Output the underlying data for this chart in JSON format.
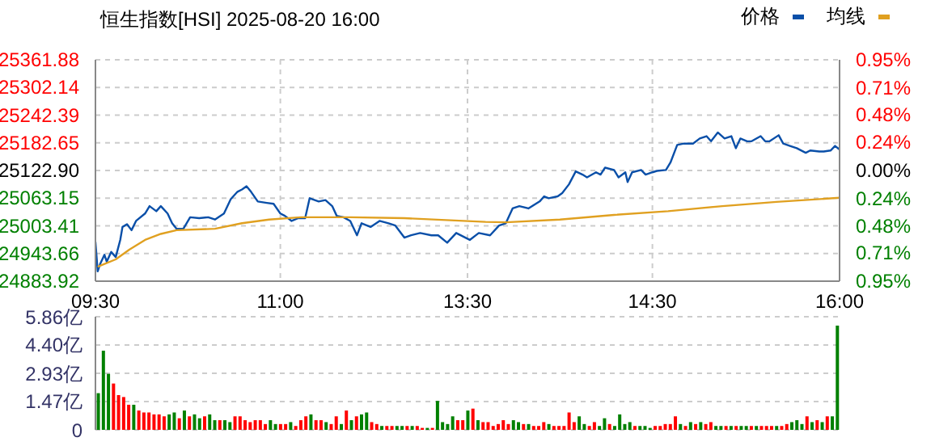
{
  "chart_data": [
    {
      "type": "line",
      "title": "恒生指数[HSI] 2025-08-20 16:00",
      "legend": "top right",
      "grid": true,
      "categories": [
        "09:30",
        null,
        null,
        null,
        null,
        null,
        null,
        null,
        null,
        null,
        null,
        null,
        null,
        null,
        null,
        null,
        null,
        null,
        null,
        null,
        null,
        null,
        null,
        null,
        null,
        null,
        null,
        null,
        null,
        null,
        null,
        null,
        null,
        null,
        null,
        null,
        null,
        null,
        null,
        null,
        null,
        null,
        null,
        null,
        null,
        null,
        null,
        null,
        null,
        null,
        null,
        null,
        null,
        null,
        null,
        null,
        null,
        null,
        null,
        null,
        null,
        null,
        null,
        null,
        null,
        null,
        null,
        null,
        null,
        null,
        null,
        null,
        null,
        null,
        null,
        null,
        null,
        null,
        null,
        null,
        null,
        null,
        "11:00",
        null,
        null,
        null,
        null,
        null,
        null,
        null,
        null,
        null,
        null,
        null,
        null,
        null,
        null,
        null,
        null,
        null,
        null,
        null,
        null,
        null,
        null,
        null,
        null,
        null,
        null,
        null,
        null,
        null,
        null,
        null,
        null,
        null,
        null,
        null,
        null,
        null,
        null,
        null,
        null,
        null,
        null,
        null,
        null,
        null,
        null,
        null,
        null,
        null,
        null,
        null,
        null,
        null,
        null,
        null,
        null,
        null,
        null,
        null,
        null,
        null,
        null,
        null,
        null,
        null,
        null,
        null,
        null,
        null,
        null,
        null,
        null,
        null,
        null,
        null,
        null,
        null,
        null,
        null,
        null,
        null,
        null,
        "13:30",
        null,
        null,
        null,
        null,
        null,
        null,
        null,
        null,
        null,
        null,
        null,
        null,
        null,
        null,
        null,
        null,
        null,
        null,
        null,
        null,
        null,
        null,
        null,
        null,
        null,
        null,
        null,
        null,
        null,
        null,
        null,
        null,
        null,
        null,
        null,
        null,
        null,
        null,
        null,
        null,
        null,
        null,
        null,
        null,
        null,
        null,
        null,
        null,
        null,
        null,
        null,
        null,
        null,
        null,
        null,
        null,
        null,
        null,
        null,
        null,
        null,
        null,
        null,
        null,
        null,
        null,
        null,
        null,
        null,
        null,
        null,
        null,
        null,
        null,
        null,
        null,
        null,
        null,
        null,
        null,
        null,
        "14:30",
        null,
        null,
        null,
        null,
        null,
        null,
        null,
        null,
        null,
        null,
        null,
        null,
        null,
        null,
        null,
        null,
        null,
        null,
        null,
        null,
        null,
        null,
        null,
        null,
        null,
        null,
        null,
        null,
        null,
        null,
        null,
        null,
        null,
        null,
        null,
        null,
        null,
        null,
        null,
        null,
        null,
        null,
        null,
        null,
        null,
        null,
        null,
        null,
        null,
        null,
        null,
        null,
        null,
        null,
        null,
        null,
        null,
        null,
        null,
        null,
        null,
        null,
        null,
        null,
        null,
        null,
        null,
        null,
        null,
        null,
        null,
        null,
        null,
        null,
        null,
        null,
        null,
        null,
        null,
        null,
        null,
        null,
        "16:00"
      ],
      "ylim": [
        24883.92,
        25361.88
      ],
      "yticks": [
        24883.92,
        24943.66,
        25003.41,
        25063.15,
        {
          "value": 25122.9,
          "label": "25122.90"
        },
        25182.65,
        25242.39,
        25302.14,
        25361.88
      ],
      "y2lim": [
        -0.95,
        0.95
      ],
      "y2ticks": [
        {
          "value": -0.95,
          "label": "0.95%"
        },
        {
          "value": -0.71,
          "label": "0.71%"
        },
        {
          "value": -0.48,
          "label": "0.48%"
        },
        {
          "value": -0.24,
          "label": "0.24%"
        },
        {
          "value": 0,
          "label": "0.00%"
        },
        {
          "value": 0.24,
          "label": "0.24%"
        },
        {
          "value": 0.48,
          "label": "0.48%"
        },
        {
          "value": 0.71,
          "label": "0.71%"
        },
        {
          "value": 0.95,
          "label": "0.95%"
        }
      ],
      "series": [
        {
          "name": "价格",
          "color": "#0a4fa8",
          "values": [
            24969,
            24905,
            24920,
            null,
            24941,
            24926,
            null,
            24947,
            null,
            24936,
            null,
            24973,
            25001,
            null,
            25007,
            null,
            24994,
            null,
            25014,
            null,
            null,
            null,
            25030,
            null,
            25046,
            null,
            null,
            25035,
            null,
            25046,
            null,
            null,
            25030,
            null,
            25009,
            null,
            24997,
            null,
            null,
            24997,
            null,
            null,
            25022,
            null,
            null,
            null,
            25020,
            null,
            null,
            null,
            25022,
            null,
            null,
            25017,
            null,
            null,
            null,
            25030,
            null,
            null,
            25061,
            null,
            null,
            25077,
            null,
            25082,
            null,
            25089,
            null,
            25077,
            null,
            null,
            25056,
            null,
            null,
            null,
            25053,
            null,
            null,
            25051,
            null,
            null,
            25030,
            null,
            25025,
            null,
            null,
            25014,
            null,
            null,
            25020,
            null,
            null,
            25020,
            null,
            25063,
            null,
            null,
            null,
            25056,
            null,
            null,
            25059,
            null,
            null,
            25046,
            null,
            25025,
            null,
            null,
            25022,
            null,
            null,
            25014,
            null,
            null,
            24983,
            null,
            25009,
            null,
            null,
            null,
            25001,
            null,
            null,
            null,
            25014,
            null,
            null,
            null,
            25009,
            null,
            null,
            25004,
            null,
            null,
            null,
            24978,
            null,
            null,
            24983,
            null,
            null,
            null,
            24988,
            null,
            null,
            null,
            null,
            24983,
            null,
            null,
            24983,
            null,
            null,
            null,
            24967,
            null,
            null,
            null,
            24988,
            null,
            null,
            null,
            null,
            null,
            24973,
            null,
            null,
            null,
            24988,
            null,
            null,
            null,
            null,
            24983,
            null,
            null,
            null,
            25004,
            null,
            null,
            25009,
            null,
            null,
            25041,
            null,
            null,
            25046,
            null,
            null,
            null,
            25041,
            null,
            null,
            null,
            null,
            25056,
            null,
            25067,
            null,
            25063,
            null,
            null,
            null,
            25067,
            null,
            25074,
            null,
            null,
            25093,
            null,
            null,
            25121,
            null,
            null,
            25114,
            null,
            25108,
            null,
            null,
            null,
            25119,
            null,
            25114,
            null,
            25129,
            null,
            null,
            null,
            25124,
            null,
            25108,
            null,
            null,
            25119,
            25098,
            null,
            25119,
            null,
            null,
            null,
            25124,
            null,
            25114,
            null,
            null,
            25119,
            null,
            25122,
            null,
            null,
            null,
            25124,
            null,
            25140,
            null,
            null,
            25178,
            null,
            null,
            25181,
            null,
            null,
            null,
            25181,
            null,
            null,
            25192,
            null,
            null,
            25197,
            null,
            25186,
            null,
            null,
            25205,
            null,
            null,
            25192,
            null,
            null,
            25197,
            null,
            25171,
            null,
            25192,
            null,
            null,
            25186,
            null,
            25186,
            null,
            null,
            null,
            25197,
            null,
            25186,
            null,
            25186,
            null,
            null,
            null,
            25199,
            null,
            25181,
            null,
            null,
            25176,
            null,
            null,
            25171,
            null,
            null,
            null,
            25161,
            null,
            25166,
            null,
            null,
            null,
            25164,
            null,
            25164,
            null,
            null,
            25166,
            null,
            25176,
            null,
            25168
          ]
        },
        {
          "name": "均线",
          "color": "#e0a020",
          "values": [
            null,
            24915,
            null,
            null,
            null,
            null,
            null,
            null,
            null,
            24931,
            null,
            null,
            null,
            null,
            null,
            24952,
            null,
            null,
            null,
            null,
            null,
            null,
            24973,
            null,
            null,
            null,
            null,
            null,
            null,
            24986,
            null,
            null,
            null,
            null,
            null,
            null,
            24994,
            null,
            null,
            null,
            null,
            null,
            null,
            null,
            null,
            null,
            null,
            null,
            null,
            null,
            null,
            null,
            null,
            24997,
            null,
            null,
            null,
            null,
            null,
            null,
            null,
            null,
            null,
            null,
            null,
            25009,
            null,
            null,
            null,
            null,
            null,
            null,
            null,
            null,
            null,
            null,
            null,
            25017,
            null,
            null,
            null,
            null,
            null,
            null,
            null,
            null,
            null,
            null,
            null,
            null,
            null,
            25022,
            null,
            null,
            null,
            null,
            null,
            null,
            null,
            null,
            null,
            null,
            null,
            null,
            null,
            null,
            null,
            null,
            null,
            null,
            null,
            null,
            null,
            25022,
            null,
            null,
            null,
            null,
            null,
            null,
            null,
            null,
            null,
            null,
            null,
            null,
            null,
            null,
            null,
            null,
            null,
            null,
            null,
            null,
            null,
            null,
            null,
            25020,
            null,
            null,
            null,
            null,
            null,
            null,
            null,
            null,
            null,
            null,
            null,
            null,
            null,
            null,
            null,
            null,
            null,
            null,
            null,
            null,
            null,
            null,
            null,
            null,
            null,
            null,
            null,
            null,
            null,
            null,
            null,
            null,
            null,
            null,
            null,
            25012,
            null,
            null,
            null,
            null,
            null,
            null,
            null,
            null,
            25011,
            null,
            null,
            null,
            null,
            null,
            null,
            null,
            null,
            null,
            null,
            null,
            null,
            null,
            null,
            null,
            null,
            null,
            null,
            null,
            null,
            null,
            null,
            null,
            25017,
            null,
            null,
            null,
            null,
            null,
            null,
            null,
            null,
            null,
            null,
            null,
            null,
            null,
            null,
            null,
            null,
            null,
            null,
            null,
            null,
            null,
            null,
            null,
            25027,
            null,
            null,
            null,
            null,
            null,
            null,
            null,
            null,
            null,
            null,
            null,
            null,
            null,
            null,
            null,
            null,
            null,
            null,
            null,
            null,
            null,
            null,
            null,
            25035,
            null,
            null,
            null,
            null,
            null,
            null,
            null,
            null,
            null,
            null,
            null,
            null,
            null,
            null,
            null,
            null,
            null,
            null,
            null,
            null,
            null,
            null,
            null,
            25046,
            null,
            null,
            null,
            null,
            null,
            null,
            null,
            null,
            null,
            null,
            null,
            null,
            null,
            null,
            null,
            null,
            null,
            null,
            null,
            null,
            null,
            null,
            null,
            25055,
            null,
            null,
            null,
            null,
            null,
            null,
            null,
            null,
            null,
            null,
            null,
            null,
            null,
            null,
            null,
            null,
            null,
            null,
            null,
            null,
            null,
            null,
            null,
            null,
            null,
            null,
            null,
            25064
          ]
        }
      ]
    },
    {
      "type": "bar",
      "grid": "y",
      "ylim": [
        0,
        5.86
      ],
      "yticks": [
        0,
        {
          "value": 1.47,
          "label": "1.47亿"
        },
        {
          "value": 2.93,
          "label": "2.93亿"
        },
        {
          "value": 4.4,
          "label": "4.40亿"
        },
        {
          "value": 5.86,
          "label": "5.86亿"
        }
      ],
      "categories": [
        null,
        null,
        null,
        null,
        null,
        null,
        null,
        null,
        null,
        null,
        null,
        null,
        null,
        null,
        null,
        null,
        null,
        null,
        null,
        null,
        null,
        null,
        null,
        null,
        null,
        null,
        null,
        null,
        null,
        null,
        null,
        null,
        null,
        null,
        null,
        null,
        null,
        null,
        null,
        null,
        null,
        null,
        null,
        null,
        null,
        null,
        null,
        null,
        null,
        null,
        null,
        null,
        null,
        null,
        null,
        null,
        null,
        null,
        null,
        null,
        null,
        null,
        null,
        null,
        null,
        null,
        null,
        null,
        null,
        null,
        null,
        null,
        null,
        null,
        null,
        null,
        null,
        null,
        null,
        null,
        null,
        null,
        null,
        null,
        null,
        null,
        null,
        null,
        null,
        null,
        null,
        null,
        null,
        null,
        null,
        null,
        null,
        null,
        null,
        null,
        null,
        null,
        null,
        null,
        null,
        null,
        null,
        null,
        null,
        null,
        null,
        null,
        null,
        null,
        null,
        null,
        null,
        null,
        null,
        null,
        null,
        null,
        null,
        null,
        null,
        null,
        null,
        null,
        null,
        null,
        null,
        null,
        null,
        null,
        null,
        null,
        null,
        null,
        null,
        null,
        null,
        null,
        null,
        null,
        null,
        null,
        null
      ],
      "values": [
        1.9,
        4.1,
        2.9,
        2.4,
        1.8,
        1.7,
        1.3,
        1.3,
        1.0,
        0.9,
        0.9,
        0.8,
        0.8,
        0.7,
        0.8,
        0.9,
        0.6,
        1.0,
        0.7,
        0.8,
        0.6,
        0.7,
        0.8,
        0.5,
        0.5,
        0.5,
        0.4,
        0.7,
        0.7,
        0.5,
        0.4,
        0.5,
        0.5,
        0.3,
        0.5,
        0.3,
        0.3,
        0.3,
        0.4,
        0.2,
        0.5,
        0.7,
        0.8,
        0.5,
        0.5,
        0.4,
        0.3,
        0.7,
        0.3,
        1.0,
        0.5,
        0.7,
        0.8,
        0.9,
        0.4,
        0.3,
        0.2,
        0.2,
        0.2,
        0.2,
        0.2,
        0.2,
        0.2,
        0.2,
        0.1,
        0.1,
        0.1,
        1.5,
        0.4,
        0.3,
        0.7,
        0.5,
        0.5,
        1.0,
        1.1,
        0.5,
        0.4,
        0.4,
        0.2,
        0.3,
        0.5,
        0.3,
        0.5,
        0.4,
        0.3,
        0.3,
        0.2,
        0.2,
        0.4,
        0.3,
        0.2,
        0.2,
        0.2,
        0.9,
        0.4,
        0.7,
        0.3,
        0.2,
        0.4,
        0.2,
        0.6,
        0.3,
        0.2,
        0.8,
        0.3,
        0.4,
        0.2,
        0.2,
        0.2,
        0.1,
        0.2,
        0.2,
        0.3,
        0.3,
        0.7,
        0.3,
        0.2,
        0.4,
        0.3,
        0.4,
        0.3,
        0.4,
        0.2,
        0.2,
        0.2,
        0.2,
        0.2,
        0.2,
        0.2,
        0.2,
        0.2,
        0.2,
        0.2,
        0.2,
        0.2,
        0.2,
        0.3,
        0.4,
        0.5,
        0.3,
        0.7,
        0.4,
        0.5,
        0.4,
        0.7,
        0.7,
        5.4
      ],
      "colors": [
        "#008000",
        "#008000",
        "#008000",
        "#ff0000",
        "#ff0000",
        "#ff0000",
        "#ff0000",
        "#008000",
        "#ff0000",
        "#ff0000",
        "#ff0000",
        "#ff0000",
        "#ff0000",
        "#ff0000",
        "#008000",
        "#008000",
        "#ff0000",
        "#008000",
        "#ff0000",
        "#008000",
        "#008000",
        "#ff0000",
        "#008000",
        "#008000",
        "#ff0000",
        "#008000",
        "#008000",
        "#ff0000",
        "#ff0000",
        "#ff0000",
        "#ff0000",
        "#ff0000",
        "#ff0000",
        "#ff0000",
        "#008000",
        "#008000",
        "#ff0000",
        "#ff0000",
        "#008000",
        "#ff0000",
        "#ff0000",
        "#ff0000",
        "#008000",
        "#ff0000",
        "#ff0000",
        "#008000",
        "#ff0000",
        "#ff0000",
        "#008000",
        "#ff0000",
        "#008000",
        "#ff0000",
        "#008000",
        "#008000",
        "#ff0000",
        "#ff0000",
        "#008000",
        "#ff0000",
        "#ff0000",
        "#008000",
        "#008000",
        "#ff0000",
        "#008000",
        "#ff0000",
        "#ff0000",
        "#008000",
        "#ff0000",
        "#008000",
        "#008000",
        "#008000",
        "#008000",
        "#ff0000",
        "#ff0000",
        "#008000",
        "#ff0000",
        "#008000",
        "#ff0000",
        "#ff0000",
        "#ff0000",
        "#ff0000",
        "#ff0000",
        "#ff0000",
        "#008000",
        "#008000",
        "#ff0000",
        "#008000",
        "#ff0000",
        "#ff0000",
        "#ff0000",
        "#008000",
        "#ff0000",
        "#ff0000",
        "#ff0000",
        "#ff0000",
        "#ff0000",
        "#008000",
        "#008000",
        "#ff0000",
        "#ff0000",
        "#008000",
        "#008000",
        "#ff0000",
        "#008000",
        "#008000",
        "#008000",
        "#008000",
        "#ff0000",
        "#008000",
        "#008000",
        "#008000",
        "#ff0000",
        "#ff0000",
        "#ff0000",
        "#ff0000",
        "#ff0000",
        "#008000",
        "#ff0000",
        "#008000",
        "#ff0000",
        "#008000",
        "#ff0000",
        "#ff0000",
        "#008000",
        "#008000",
        "#ff0000",
        "#008000",
        "#ff0000",
        "#008000",
        "#008000",
        "#ff0000",
        "#008000",
        "#ff0000",
        "#ff0000",
        "#ff0000",
        "#008000",
        "#ff0000",
        "#ff0000",
        "#008000",
        "#008000",
        "#008000",
        "#ff0000",
        "#008000",
        "#ff0000",
        "#008000",
        "#ff0000",
        "#008000",
        "#008000"
      ]
    }
  ]
}
